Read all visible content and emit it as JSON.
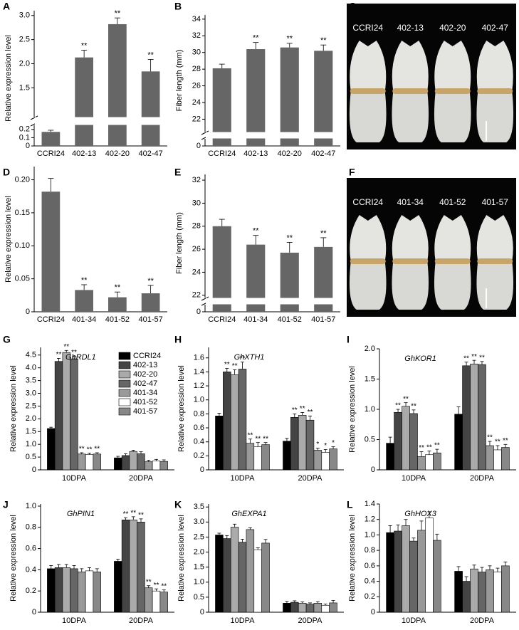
{
  "chart_data": [
    {
      "type": "bar",
      "panel": "A",
      "ylabel": "Relative expression level",
      "categories": [
        "CCRI24",
        "402-13",
        "402-20",
        "402-47"
      ],
      "values": [
        0.17,
        2.13,
        2.82,
        1.84
      ],
      "errors": [
        0.02,
        0.15,
        0.13,
        0.25
      ],
      "significance": [
        null,
        "**",
        "**",
        "**"
      ],
      "color": "#666666",
      "ylim": [
        0,
        3.1
      ],
      "ybreak": [
        0.25,
        0.9
      ],
      "yticks": [
        0,
        0.1,
        0.2,
        1.5,
        {
          "value": 2,
          "label": "2.0"
        },
        2.5,
        {
          "value": 3,
          "label": "3.0"
        }
      ]
    },
    {
      "type": "bar",
      "panel": "B",
      "ylabel": "Fiber length (mm)",
      "categories": [
        "CCRI24",
        "402-13",
        "402-20",
        "402-47"
      ],
      "values": [
        28.1,
        30.4,
        30.6,
        30.2
      ],
      "errors": [
        0.5,
        0.8,
        0.5,
        0.7
      ],
      "significance": [
        null,
        "**",
        "**",
        "**"
      ],
      "color": "#666666",
      "ylim": [
        0,
        34.5
      ],
      "ybreak": [
        1,
        20.5
      ],
      "yticks": [
        0,
        22,
        24,
        26,
        28,
        30,
        32,
        34
      ]
    },
    {
      "type": "photo",
      "panel": "C",
      "labels": [
        "CCRI24",
        "402-13",
        "402-20",
        "402-47"
      ]
    },
    {
      "type": "bar",
      "panel": "D",
      "ylabel": "Relative expression level",
      "categories": [
        "CCRI24",
        "401-34",
        "401-52",
        "401-57"
      ],
      "values": [
        0.182,
        0.033,
        0.022,
        0.028
      ],
      "errors": [
        0.02,
        0.008,
        0.008,
        0.012
      ],
      "significance": [
        null,
        "**",
        "**",
        "**"
      ],
      "color": "#666666",
      "ylim": [
        0,
        0.22
      ],
      "yticks": [
        0,
        0.05,
        {
          "value": 0.1,
          "label": "0.10"
        },
        0.15,
        {
          "value": 0.2,
          "label": "0.20"
        }
      ]
    },
    {
      "type": "bar",
      "panel": "E",
      "ylabel": "Fiber length (mm)",
      "categories": [
        "CCRI24",
        "401-34",
        "401-52",
        "401-57"
      ],
      "values": [
        28.0,
        26.4,
        25.7,
        26.2
      ],
      "errors": [
        0.6,
        0.8,
        0.9,
        0.8
      ],
      "significance": [
        null,
        "**",
        "**",
        "**"
      ],
      "color": "#666666",
      "ylim": [
        0,
        32.5
      ],
      "ybreak": [
        1,
        21.8
      ],
      "yticks": [
        0,
        22,
        24,
        26,
        28,
        30,
        32
      ]
    },
    {
      "type": "photo",
      "panel": "F",
      "labels": [
        "CCRI24",
        "401-34",
        "401-52",
        "401-57"
      ]
    },
    {
      "type": "grouped_bar",
      "panel": "G",
      "gene": "GhRDL1",
      "ylabel": "Relative expression level",
      "categories": [
        "10DPA",
        "20DPA"
      ],
      "legend": "upper right",
      "ylim": [
        0,
        4.8
      ],
      "yticks": [
        0,
        0.5,
        {
          "value": 1,
          "label": "1.0"
        },
        1.5,
        {
          "value": 2,
          "label": "2.0"
        },
        2.5,
        {
          "value": 3,
          "label": "3.0"
        },
        3.5,
        {
          "value": 4,
          "label": "4.0"
        },
        4.5
      ],
      "series": [
        {
          "name": "CCRI24",
          "color": "#000000",
          "values": [
            1.62,
            0.47
          ],
          "errors": [
            0.05,
            0.06
          ],
          "significance": [
            null,
            null
          ]
        },
        {
          "name": "402-13",
          "color": "#444444",
          "values": [
            4.25,
            0.56
          ],
          "errors": [
            0.12,
            0.07
          ],
          "significance": [
            "**",
            null
          ]
        },
        {
          "name": "402-20",
          "color": "#aaaaaa",
          "values": [
            4.6,
            0.72
          ],
          "errors": [
            0.08,
            0.05
          ],
          "significance": [
            "**",
            null
          ]
        },
        {
          "name": "402-47",
          "color": "#666666",
          "values": [
            4.35,
            0.63
          ],
          "errors": [
            0.1,
            0.08
          ],
          "significance": [
            "**",
            null
          ]
        },
        {
          "name": "401-34",
          "color": "#999999",
          "values": [
            0.62,
            0.32
          ],
          "errors": [
            0.05,
            0.06
          ],
          "significance": [
            "**",
            null
          ]
        },
        {
          "name": "401-52",
          "color": "#ffffff",
          "values": [
            0.6,
            0.35
          ],
          "errors": [
            0.05,
            0.06
          ],
          "significance": [
            "**",
            null
          ]
        },
        {
          "name": "401-57",
          "color": "#888888",
          "values": [
            0.62,
            0.33
          ],
          "errors": [
            0.05,
            0.06
          ],
          "significance": [
            "**",
            null
          ]
        }
      ]
    },
    {
      "type": "grouped_bar",
      "panel": "H",
      "gene": "GhXTH1",
      "ylabel": "Relative expression level",
      "categories": [
        "10DPA",
        "20DPA"
      ],
      "ylim": [
        0,
        1.75
      ],
      "yticks": [
        0,
        0.2,
        0.4,
        0.6,
        0.8,
        {
          "value": 1,
          "label": "1.0"
        },
        1.2,
        1.4,
        1.6
      ],
      "series": [
        {
          "color": "#000000",
          "values": [
            0.77,
            0.41
          ],
          "errors": [
            0.04,
            0.04
          ],
          "significance": [
            null,
            null
          ]
        },
        {
          "color": "#444444",
          "values": [
            1.4,
            0.75
          ],
          "errors": [
            0.05,
            0.05
          ],
          "significance": [
            "**",
            "**"
          ]
        },
        {
          "color": "#aaaaaa",
          "values": [
            1.36,
            0.78
          ],
          "errors": [
            0.07,
            0.04
          ],
          "significance": [
            "**",
            "**"
          ]
        },
        {
          "color": "#666666",
          "values": [
            1.44,
            0.71
          ],
          "errors": [
            0.1,
            0.06
          ],
          "significance": [
            "**",
            "**"
          ]
        },
        {
          "color": "#999999",
          "values": [
            0.38,
            0.28
          ],
          "errors": [
            0.06,
            0.03
          ],
          "significance": [
            "**",
            "*"
          ]
        },
        {
          "color": "#ffffff",
          "values": [
            0.33,
            0.25
          ],
          "errors": [
            0.06,
            0.04
          ],
          "significance": [
            "**",
            "*"
          ]
        },
        {
          "color": "#888888",
          "values": [
            0.36,
            0.3
          ],
          "errors": [
            0.03,
            0.03
          ],
          "significance": [
            "**",
            "*"
          ]
        }
      ]
    },
    {
      "type": "grouped_bar",
      "panel": "I",
      "gene": "GhKOR1",
      "ylabel": "Relative expression level",
      "categories": [
        "10DPA",
        "20DPA"
      ],
      "ylim": [
        0,
        2.0
      ],
      "yticks": [
        0,
        0.5,
        {
          "value": 1,
          "label": "1.0"
        },
        1.5,
        {
          "value": 2,
          "label": "2.0"
        }
      ],
      "series": [
        {
          "color": "#000000",
          "values": [
            0.44,
            0.92
          ],
          "errors": [
            0.1,
            0.12
          ],
          "significance": [
            null,
            null
          ]
        },
        {
          "color": "#444444",
          "values": [
            0.95,
            1.72
          ],
          "errors": [
            0.05,
            0.06
          ],
          "significance": [
            "**",
            "**"
          ]
        },
        {
          "color": "#aaaaaa",
          "values": [
            1.05,
            1.75
          ],
          "errors": [
            0.06,
            0.06
          ],
          "significance": [
            "**",
            "**"
          ]
        },
        {
          "color": "#666666",
          "values": [
            0.93,
            1.74
          ],
          "errors": [
            0.06,
            0.05
          ],
          "significance": [
            "**",
            "**"
          ]
        },
        {
          "color": "#999999",
          "values": [
            0.22,
            0.4
          ],
          "errors": [
            0.08,
            0.07
          ],
          "significance": [
            "**",
            "**"
          ]
        },
        {
          "color": "#ffffff",
          "values": [
            0.25,
            0.33
          ],
          "errors": [
            0.06,
            0.07
          ],
          "significance": [
            "**",
            "**"
          ]
        },
        {
          "color": "#888888",
          "values": [
            0.28,
            0.37
          ],
          "errors": [
            0.06,
            0.05
          ],
          "significance": [
            "**",
            "**"
          ]
        }
      ]
    },
    {
      "type": "grouped_bar",
      "panel": "J",
      "gene": "GhPIN1",
      "ylabel": "Relative expression level",
      "categories": [
        "10DPA",
        "20DPA"
      ],
      "ylim": [
        0,
        1.02
      ],
      "yticks": [
        0,
        0.2,
        0.4,
        0.6,
        0.8,
        {
          "value": 1,
          "label": "1.0"
        }
      ],
      "series": [
        {
          "color": "#000000",
          "values": [
            0.41,
            0.48
          ],
          "errors": [
            0.03,
            0.02
          ],
          "significance": [
            null,
            null
          ]
        },
        {
          "color": "#444444",
          "values": [
            0.42,
            0.87
          ],
          "errors": [
            0.03,
            0.02
          ],
          "significance": [
            null,
            "**"
          ]
        },
        {
          "color": "#aaaaaa",
          "values": [
            0.42,
            0.87
          ],
          "errors": [
            0.03,
            0.03
          ],
          "significance": [
            null,
            "**"
          ]
        },
        {
          "color": "#666666",
          "values": [
            0.41,
            0.85
          ],
          "errors": [
            0.03,
            0.03
          ],
          "significance": [
            null,
            "**"
          ]
        },
        {
          "color": "#999999",
          "values": [
            0.38,
            0.23
          ],
          "errors": [
            0.03,
            0.02
          ],
          "significance": [
            null,
            "**"
          ]
        },
        {
          "color": "#ffffff",
          "values": [
            0.39,
            0.2
          ],
          "errors": [
            0.03,
            0.02
          ],
          "significance": [
            null,
            "**"
          ]
        },
        {
          "color": "#888888",
          "values": [
            0.38,
            0.19
          ],
          "errors": [
            0.03,
            0.02
          ],
          "significance": [
            null,
            "**"
          ]
        }
      ]
    },
    {
      "type": "grouped_bar",
      "panel": "K",
      "gene": "GhEXPA1",
      "ylabel": "Relative expression level",
      "categories": [
        "10DPA",
        "20DPA"
      ],
      "ylim": [
        0,
        3.6
      ],
      "yticks": [
        0,
        0.5,
        {
          "value": 1,
          "label": "1.0"
        },
        1.5,
        {
          "value": 2,
          "label": "2.0"
        },
        2.5,
        {
          "value": 3,
          "label": "3.0"
        },
        3.5
      ],
      "series": [
        {
          "color": "#000000",
          "values": [
            2.57,
            0.3
          ],
          "errors": [
            0.06,
            0.06
          ],
          "significance": [
            null,
            null
          ]
        },
        {
          "color": "#444444",
          "values": [
            2.45,
            0.33
          ],
          "errors": [
            0.1,
            0.05
          ],
          "significance": [
            null,
            null
          ]
        },
        {
          "color": "#aaaaaa",
          "values": [
            2.83,
            0.3
          ],
          "errors": [
            0.1,
            0.04
          ],
          "significance": [
            null,
            null
          ]
        },
        {
          "color": "#666666",
          "values": [
            2.33,
            0.27
          ],
          "errors": [
            0.1,
            0.04
          ],
          "significance": [
            null,
            null
          ]
        },
        {
          "color": "#999999",
          "values": [
            2.75,
            0.3
          ],
          "errors": [
            0.06,
            0.05
          ],
          "significance": [
            null,
            null
          ]
        },
        {
          "color": "#ffffff",
          "values": [
            2.08,
            0.23
          ],
          "errors": [
            0.06,
            0.04
          ],
          "significance": [
            null,
            null
          ]
        },
        {
          "color": "#888888",
          "values": [
            2.3,
            0.31
          ],
          "errors": [
            0.12,
            0.08
          ],
          "significance": [
            null,
            null
          ]
        }
      ]
    },
    {
      "type": "grouped_bar",
      "panel": "L",
      "gene": "GhHOX3",
      "ylabel": "Relative expression level",
      "categories": [
        "10DPA",
        "20DPA"
      ],
      "ylim": [
        0,
        1.4
      ],
      "yticks": [
        0,
        0.2,
        0.4,
        0.6,
        0.8,
        {
          "value": 1,
          "label": "1.0"
        },
        1.2,
        1.4
      ],
      "series": [
        {
          "color": "#000000",
          "values": [
            1.03,
            0.53
          ],
          "errors": [
            0.09,
            0.06
          ],
          "significance": [
            null,
            null
          ]
        },
        {
          "color": "#444444",
          "values": [
            1.05,
            0.4
          ],
          "errors": [
            0.08,
            0.06
          ],
          "significance": [
            null,
            null
          ]
        },
        {
          "color": "#aaaaaa",
          "values": [
            1.12,
            0.56
          ],
          "errors": [
            0.08,
            0.05
          ],
          "significance": [
            null,
            null
          ]
        },
        {
          "color": "#666666",
          "values": [
            0.92,
            0.52
          ],
          "errors": [
            0.04,
            0.06
          ],
          "significance": [
            null,
            null
          ]
        },
        {
          "color": "#999999",
          "values": [
            1.06,
            0.55
          ],
          "errors": [
            0.12,
            0.05
          ],
          "significance": [
            null,
            null
          ]
        },
        {
          "color": "#ffffff",
          "values": [
            1.22,
            0.52
          ],
          "errors": [
            0.08,
            0.05
          ],
          "significance": [
            null,
            null
          ]
        },
        {
          "color": "#888888",
          "values": [
            0.93,
            0.6
          ],
          "errors": [
            0.08,
            0.05
          ],
          "significance": [
            null,
            null
          ]
        }
      ]
    }
  ]
}
